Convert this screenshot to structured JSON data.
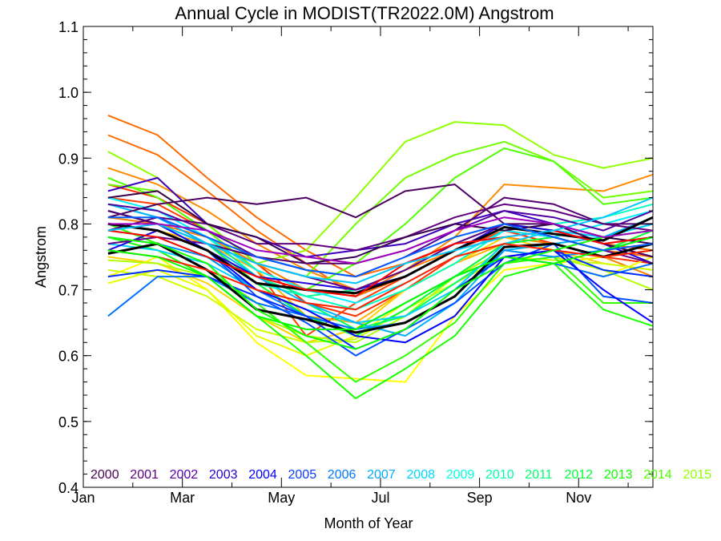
{
  "chart_data": {
    "type": "line",
    "title": "Annual Cycle in MODIST(TR2022.0M) Angstrom",
    "xlabel": "Month of Year",
    "ylabel": "Angstrom",
    "xlim": [
      1,
      12.5
    ],
    "ylim": [
      0.4,
      1.1
    ],
    "x": [
      1.5,
      2.5,
      3.5,
      4.5,
      5.5,
      6.5,
      7.5,
      8.5,
      9.5,
      10.5,
      11.5,
      12.5
    ],
    "x_ticks": [
      {
        "value": 1,
        "label": "Jan"
      },
      {
        "value": 3,
        "label": "Mar"
      },
      {
        "value": 5,
        "label": "May"
      },
      {
        "value": 7,
        "label": "Jul"
      },
      {
        "value": 9,
        "label": "Sep"
      },
      {
        "value": 11,
        "label": "Nov"
      }
    ],
    "y_ticks": [
      {
        "value": 0.4,
        "label": "0.4"
      },
      {
        "value": 0.5,
        "label": "0.5"
      },
      {
        "value": 0.6,
        "label": "0.6"
      },
      {
        "value": 0.7,
        "label": "0.7"
      },
      {
        "value": 0.8,
        "label": "0.8"
      },
      {
        "value": 0.9,
        "label": "0.9"
      },
      {
        "value": 1.0,
        "label": "1.0"
      },
      {
        "value": 1.1,
        "label": "1.1"
      }
    ],
    "grid": false,
    "legend_position": "bottom inside",
    "year_labels": [
      {
        "label": "2000",
        "color": "#4b0055"
      },
      {
        "label": "2001",
        "color": "#5a007a"
      },
      {
        "label": "2002",
        "color": "#5200a8"
      },
      {
        "label": "2003",
        "color": "#2a00d0"
      },
      {
        "label": "2004",
        "color": "#0000ff"
      },
      {
        "label": "2005",
        "color": "#0a3cff"
      },
      {
        "label": "2006",
        "color": "#0078ff"
      },
      {
        "label": "2007",
        "color": "#00aaff"
      },
      {
        "label": "2008",
        "color": "#00d8ff"
      },
      {
        "label": "2009",
        "color": "#00ffe0"
      },
      {
        "label": "2010",
        "color": "#00ffaa"
      },
      {
        "label": "2011",
        "color": "#00ff70"
      },
      {
        "label": "2012",
        "color": "#00ff38"
      },
      {
        "label": "2013",
        "color": "#10ff00"
      },
      {
        "label": "2014",
        "color": "#50ff00"
      },
      {
        "label": "2015",
        "color": "#90ff00"
      }
    ],
    "series": [
      {
        "color": "#ff6a00",
        "values": [
          0.965,
          0.935,
          0.87,
          0.81,
          0.76,
          0.72,
          0.74,
          0.77,
          0.8,
          0.79,
          0.77,
          0.76
        ]
      },
      {
        "color": "#ff6a00",
        "values": [
          0.935,
          0.905,
          0.85,
          0.79,
          0.74,
          0.69,
          0.72,
          0.76,
          0.79,
          0.78,
          0.76,
          0.75
        ]
      },
      {
        "color": "#ff8a00",
        "values": [
          0.885,
          0.86,
          0.82,
          0.77,
          0.73,
          0.7,
          0.73,
          0.78,
          0.86,
          0.855,
          0.85,
          0.875
        ]
      },
      {
        "color": "#ff3000",
        "values": [
          0.86,
          0.84,
          0.8,
          0.74,
          0.68,
          0.66,
          0.7,
          0.75,
          0.79,
          0.77,
          0.75,
          0.74
        ]
      },
      {
        "color": "#ff4000",
        "values": [
          0.84,
          0.83,
          0.79,
          0.73,
          0.63,
          0.68,
          0.72,
          0.76,
          0.79,
          0.78,
          0.76,
          0.77
        ]
      },
      {
        "color": "#ff8000",
        "values": [
          0.81,
          0.8,
          0.78,
          0.74,
          0.7,
          0.69,
          0.73,
          0.76,
          0.78,
          0.77,
          0.75,
          0.72
        ]
      },
      {
        "color": "#ffb000",
        "values": [
          0.8,
          0.79,
          0.77,
          0.73,
          0.66,
          0.65,
          0.7,
          0.74,
          0.77,
          0.76,
          0.75,
          0.76
        ]
      },
      {
        "color": "#ffd000",
        "values": [
          0.75,
          0.74,
          0.71,
          0.66,
          0.62,
          0.64,
          0.7,
          0.74,
          0.78,
          0.76,
          0.74,
          0.73
        ]
      },
      {
        "color": "#ffff00",
        "values": [
          0.72,
          0.75,
          0.7,
          0.62,
          0.57,
          0.565,
          0.56,
          0.66,
          0.73,
          0.74,
          0.72,
          0.75
        ]
      },
      {
        "color": "#e8ff00",
        "values": [
          0.71,
          0.73,
          0.7,
          0.63,
          0.6,
          0.63,
          0.68,
          0.72,
          0.75,
          0.74,
          0.75,
          0.77
        ]
      },
      {
        "color": "#ccff00",
        "values": [
          0.73,
          0.72,
          0.69,
          0.64,
          0.62,
          0.625,
          0.67,
          0.71,
          0.75,
          0.745,
          0.74,
          0.73
        ]
      },
      {
        "color": "#b0ff00",
        "values": [
          0.745,
          0.74,
          0.72,
          0.66,
          0.63,
          0.62,
          0.66,
          0.72,
          0.76,
          0.75,
          0.73,
          0.7
        ]
      },
      {
        "color": "#90ff00",
        "values": [
          0.91,
          0.87,
          0.8,
          0.74,
          0.76,
          0.84,
          0.925,
          0.955,
          0.95,
          0.905,
          0.885,
          0.9
        ]
      },
      {
        "color": "#70ff00",
        "values": [
          0.86,
          0.85,
          0.8,
          0.74,
          0.72,
          0.8,
          0.87,
          0.905,
          0.925,
          0.895,
          0.84,
          0.85
        ]
      },
      {
        "color": "#50ff00",
        "values": [
          0.87,
          0.84,
          0.79,
          0.73,
          0.7,
          0.74,
          0.8,
          0.87,
          0.915,
          0.895,
          0.83,
          0.84
        ]
      },
      {
        "color": "#30ff00",
        "values": [
          0.8,
          0.77,
          0.73,
          0.68,
          0.62,
          0.56,
          0.6,
          0.65,
          0.74,
          0.75,
          0.68,
          0.68
        ]
      },
      {
        "color": "#18ff00",
        "values": [
          0.78,
          0.76,
          0.72,
          0.66,
          0.6,
          0.535,
          0.58,
          0.63,
          0.72,
          0.74,
          0.67,
          0.645
        ]
      },
      {
        "color": "#00ff30",
        "values": [
          0.82,
          0.8,
          0.77,
          0.71,
          0.66,
          0.63,
          0.67,
          0.72,
          0.77,
          0.78,
          0.76,
          0.79
        ]
      },
      {
        "color": "#00ff60",
        "values": [
          0.79,
          0.78,
          0.75,
          0.7,
          0.68,
          0.64,
          0.66,
          0.71,
          0.76,
          0.77,
          0.75,
          0.76
        ]
      },
      {
        "color": "#00ff90",
        "values": [
          0.83,
          0.81,
          0.78,
          0.72,
          0.69,
          0.7,
          0.73,
          0.77,
          0.8,
          0.79,
          0.78,
          0.8
        ]
      },
      {
        "color": "#00ffc0",
        "values": [
          0.8,
          0.79,
          0.76,
          0.71,
          0.69,
          0.67,
          0.7,
          0.74,
          0.79,
          0.8,
          0.81,
          0.83
        ]
      },
      {
        "color": "#00f0ff",
        "values": [
          0.84,
          0.82,
          0.78,
          0.73,
          0.7,
          0.68,
          0.71,
          0.75,
          0.79,
          0.78,
          0.8,
          0.82
        ]
      },
      {
        "color": "#00d0ff",
        "values": [
          0.77,
          0.76,
          0.74,
          0.7,
          0.67,
          0.65,
          0.66,
          0.7,
          0.77,
          0.79,
          0.78,
          0.8
        ]
      },
      {
        "color": "#00b0ff",
        "values": [
          0.83,
          0.81,
          0.77,
          0.72,
          0.68,
          0.65,
          0.63,
          0.68,
          0.76,
          0.77,
          0.78,
          0.81
        ]
      },
      {
        "color": "#0090ff",
        "values": [
          0.78,
          0.77,
          0.75,
          0.7,
          0.66,
          0.64,
          0.65,
          0.69,
          0.76,
          0.75,
          0.76,
          0.78
        ]
      },
      {
        "color": "#0070ff",
        "values": [
          0.66,
          0.72,
          0.72,
          0.68,
          0.66,
          0.64,
          0.68,
          0.72,
          0.75,
          0.74,
          0.72,
          0.74
        ]
      },
      {
        "color": "#0050ff",
        "values": [
          0.8,
          0.79,
          0.76,
          0.69,
          0.65,
          0.6,
          0.64,
          0.68,
          0.74,
          0.77,
          0.69,
          0.68
        ]
      },
      {
        "color": "#0030ff",
        "values": [
          0.72,
          0.73,
          0.72,
          0.69,
          0.66,
          0.61,
          0.64,
          0.7,
          0.75,
          0.76,
          0.73,
          0.72
        ]
      },
      {
        "color": "#0000ff",
        "values": [
          0.82,
          0.8,
          0.76,
          0.7,
          0.67,
          0.63,
          0.62,
          0.66,
          0.75,
          0.76,
          0.7,
          0.65
        ]
      },
      {
        "color": "#2000e0",
        "values": [
          0.76,
          0.79,
          0.76,
          0.72,
          0.71,
          0.7,
          0.72,
          0.76,
          0.8,
          0.79,
          0.77,
          0.74
        ]
      },
      {
        "color": "#4000c0",
        "values": [
          0.85,
          0.87,
          0.8,
          0.78,
          0.75,
          0.76,
          0.77,
          0.8,
          0.82,
          0.8,
          0.77,
          0.75
        ]
      },
      {
        "color": "#5000a0",
        "values": [
          0.83,
          0.82,
          0.79,
          0.75,
          0.73,
          0.72,
          0.75,
          0.79,
          0.82,
          0.81,
          0.79,
          0.82
        ]
      },
      {
        "color": "#600080",
        "values": [
          0.79,
          0.81,
          0.8,
          0.77,
          0.77,
          0.76,
          0.78,
          0.81,
          0.83,
          0.82,
          0.8,
          0.79
        ]
      },
      {
        "color": "#4b0060",
        "values": [
          0.81,
          0.83,
          0.84,
          0.83,
          0.84,
          0.81,
          0.85,
          0.86,
          0.8,
          0.8,
          0.77,
          0.75
        ]
      },
      {
        "color": "#3a0050",
        "values": [
          0.84,
          0.85,
          0.8,
          0.78,
          0.74,
          0.75,
          0.78,
          0.8,
          0.79,
          0.8,
          0.78,
          0.77
        ]
      },
      {
        "color": "#550070",
        "values": [
          0.82,
          0.8,
          0.77,
          0.75,
          0.74,
          0.74,
          0.76,
          0.79,
          0.84,
          0.83,
          0.8,
          0.8
        ]
      },
      {
        "color": "#660088",
        "values": [
          0.77,
          0.78,
          0.77,
          0.74,
          0.72,
          0.7,
          0.73,
          0.77,
          0.8,
          0.78,
          0.76,
          0.74
        ]
      },
      {
        "color": "#000000",
        "values": [
          0.8,
          0.79,
          0.76,
          0.71,
          0.7,
          0.695,
          0.72,
          0.76,
          0.795,
          0.785,
          0.775,
          0.81
        ]
      },
      {
        "color": "#000000",
        "values": [
          0.755,
          0.77,
          0.73,
          0.67,
          0.655,
          0.635,
          0.65,
          0.69,
          0.765,
          0.77,
          0.75,
          0.77
        ]
      },
      {
        "color": "#ff0000",
        "values": [
          0.79,
          0.78,
          0.75,
          0.72,
          0.7,
          0.69,
          0.74,
          0.77,
          0.78,
          0.79,
          0.77,
          0.78
        ]
      },
      {
        "color": "#ff2000",
        "values": [
          0.76,
          0.75,
          0.73,
          0.7,
          0.68,
          0.67,
          0.71,
          0.75,
          0.77,
          0.76,
          0.75,
          0.76
        ]
      },
      {
        "color": "#10ff00",
        "values": [
          0.78,
          0.77,
          0.74,
          0.67,
          0.63,
          0.61,
          0.64,
          0.7,
          0.74,
          0.76,
          0.78,
          0.79
        ]
      },
      {
        "color": "#00ff00",
        "values": [
          0.76,
          0.75,
          0.72,
          0.66,
          0.64,
          0.64,
          0.68,
          0.72,
          0.75,
          0.74,
          0.76,
          0.78
        ]
      },
      {
        "color": "#00c8ff",
        "values": [
          0.79,
          0.8,
          0.77,
          0.74,
          0.72,
          0.71,
          0.74,
          0.76,
          0.78,
          0.79,
          0.81,
          0.84
        ]
      },
      {
        "color": "#0060ff",
        "values": [
          0.81,
          0.81,
          0.78,
          0.75,
          0.73,
          0.72,
          0.75,
          0.78,
          0.8,
          0.78,
          0.76,
          0.77
        ]
      },
      {
        "color": "#a000c0",
        "values": [
          0.8,
          0.8,
          0.79,
          0.76,
          0.75,
          0.74,
          0.76,
          0.79,
          0.81,
          0.8,
          0.78,
          0.79
        ]
      }
    ]
  }
}
